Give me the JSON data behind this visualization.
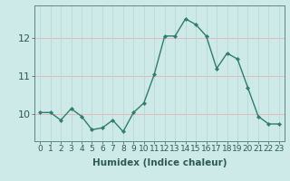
{
  "x": [
    0,
    1,
    2,
    3,
    4,
    5,
    6,
    7,
    8,
    9,
    10,
    11,
    12,
    13,
    14,
    15,
    16,
    17,
    18,
    19,
    20,
    21,
    22,
    23
  ],
  "y": [
    10.05,
    10.05,
    9.85,
    10.15,
    9.95,
    9.6,
    9.65,
    9.85,
    9.55,
    10.05,
    10.3,
    11.05,
    12.05,
    12.05,
    12.5,
    12.35,
    12.05,
    11.2,
    11.6,
    11.45,
    10.7,
    9.95,
    9.75,
    9.75
  ],
  "title": "",
  "xlabel": "Humidex (Indice chaleur)",
  "ylabel": "",
  "xlim": [
    -0.5,
    23.5
  ],
  "ylim": [
    9.3,
    12.85
  ],
  "yticks": [
    10,
    11,
    12
  ],
  "xticks": [
    0,
    1,
    2,
    3,
    4,
    5,
    6,
    7,
    8,
    9,
    10,
    11,
    12,
    13,
    14,
    15,
    16,
    17,
    18,
    19,
    20,
    21,
    22,
    23
  ],
  "line_color": "#2e7d6e",
  "marker_color": "#2e7d6e",
  "bg_color": "#ceeae8",
  "grid_color_h": "#e8b0b0",
  "grid_color_v": "#b8d8d6",
  "axes_color": "#5a8a80",
  "tick_color": "#2e5a54",
  "label_fontsize": 7.5,
  "tick_fontsize": 6.5,
  "linewidth": 1.0,
  "markersize": 2.2
}
